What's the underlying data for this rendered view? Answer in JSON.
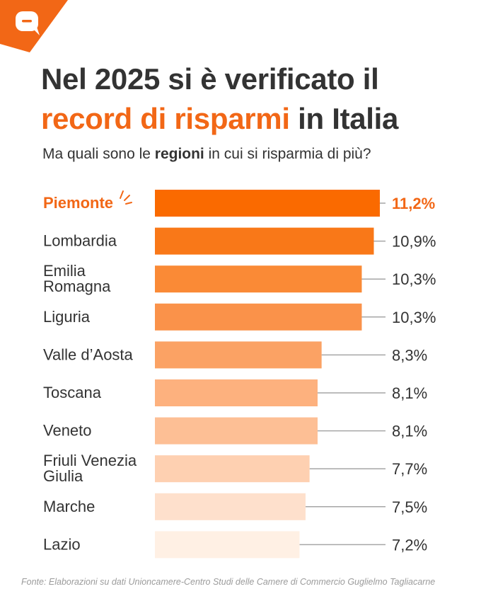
{
  "title": {
    "line1": "Nel 2025 si è verificato il",
    "line2_highlight": "record di risparmi",
    "line2_rest": " in Italia"
  },
  "subtitle": {
    "before": "Ma quali sono le ",
    "bold": "regioni",
    "after": " in cui si risparmia di più?"
  },
  "source": "Fonte: Elaborazioni su dati Unioncamere-Centro Studi delle Camere di Commercio Guglielmo Tagliacarne",
  "logo_icon": "chat-bubble-icon",
  "colors": {
    "accent": "#f26716",
    "bar_colors": [
      "#fa6a00",
      "#f97818",
      "#fa8a36",
      "#fa924a",
      "#fba264",
      "#fdb17e",
      "#fdbf95",
      "#fed0b1",
      "#fee0cc",
      "#fff0e4"
    ],
    "connector": "#a6a6a6",
    "text": "#333333"
  },
  "chart_data": {
    "type": "bar",
    "orientation": "horizontal",
    "categories": [
      [
        "Piemonte"
      ],
      [
        "Lombardia"
      ],
      [
        "Emilia",
        "Romagna"
      ],
      [
        "Liguria"
      ],
      [
        "Valle d’Aosta"
      ],
      [
        "Toscana"
      ],
      [
        "Veneto"
      ],
      [
        "Friuli Venezia",
        "Giulia"
      ],
      [
        "Marche"
      ],
      [
        "Lazio"
      ]
    ],
    "values": [
      11.2,
      10.9,
      10.3,
      10.3,
      8.3,
      8.1,
      8.1,
      7.7,
      7.5,
      7.2
    ],
    "value_labels": [
      "11,2%",
      "10,9%",
      "10,3%",
      "10,3%",
      "8,3%",
      "8,1%",
      "8,1%",
      "7,7%",
      "7,5%",
      "7,2%"
    ],
    "highlight_index": 0
  }
}
